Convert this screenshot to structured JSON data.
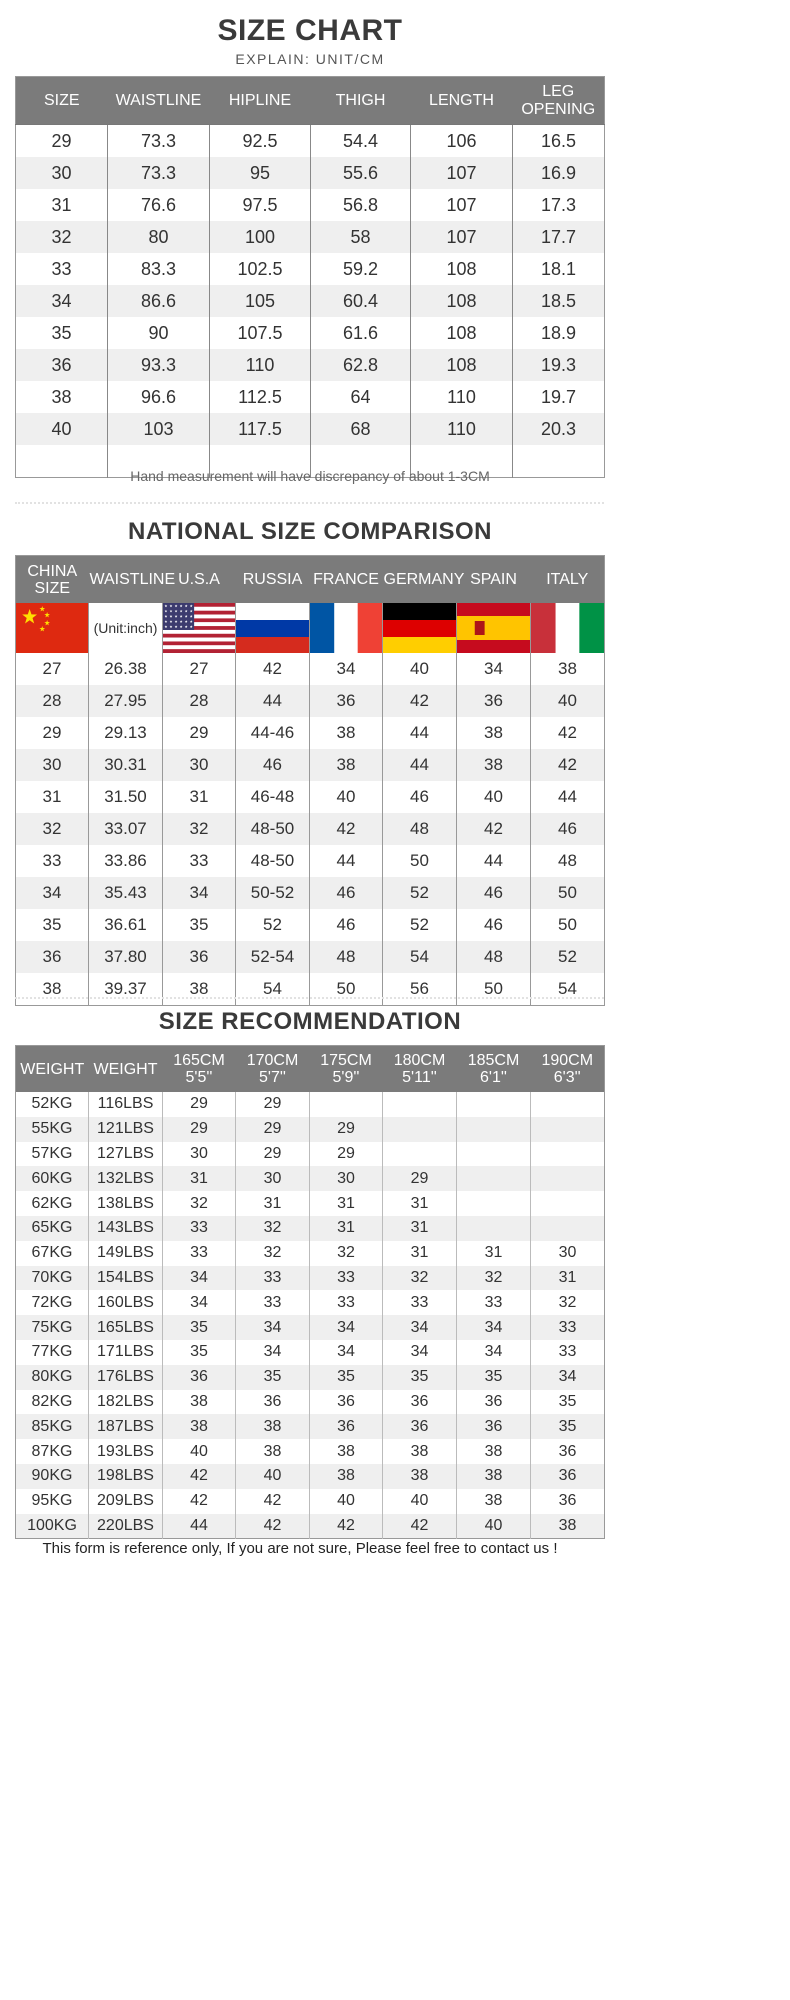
{
  "size_chart": {
    "title": "SIZE CHART",
    "subtitle": "EXPLAIN: UNIT/CM",
    "headers": [
      "SIZE",
      "WAISTLINE",
      "HIPLINE",
      "THIGH",
      "LENGTH",
      "LEG OPENING"
    ],
    "rows": [
      [
        "29",
        "73.3",
        "92.5",
        "54.4",
        "106",
        "16.5"
      ],
      [
        "30",
        "73.3",
        "95",
        "55.6",
        "107",
        "16.9"
      ],
      [
        "31",
        "76.6",
        "97.5",
        "56.8",
        "107",
        "17.3"
      ],
      [
        "32",
        "80",
        "100",
        "58",
        "107",
        "17.7"
      ],
      [
        "33",
        "83.3",
        "102.5",
        "59.2",
        "108",
        "18.1"
      ],
      [
        "34",
        "86.6",
        "105",
        "60.4",
        "108",
        "18.5"
      ],
      [
        "35",
        "90",
        "107.5",
        "61.6",
        "108",
        "18.9"
      ],
      [
        "36",
        "93.3",
        "110",
        "62.8",
        "108",
        "19.3"
      ],
      [
        "38",
        "96.6",
        "112.5",
        "64",
        "110",
        "19.7"
      ],
      [
        "40",
        "103",
        "117.5",
        "68",
        "110",
        "20.3"
      ],
      [
        "",
        "",
        "",
        "",
        "",
        ""
      ]
    ],
    "note": "Hand measurement will have discrepancy of about 1-3CM"
  },
  "national": {
    "title": "NATIONAL SIZE COMPARISON",
    "headers": [
      "CHINA SIZE",
      "WAISTLINE",
      "U.S.A",
      "RUSSIA",
      "FRANCE",
      "GERMANY",
      "SPAIN",
      "ITALY"
    ],
    "unit_label": "(Unit:inch)",
    "flags": [
      "china-flag-icon",
      "",
      "usa-flag-icon",
      "russia-flag-icon",
      "france-flag-icon",
      "germany-flag-icon",
      "spain-flag-icon",
      "italy-flag-icon"
    ],
    "rows": [
      [
        "27",
        "26.38",
        "27",
        "42",
        "34",
        "40",
        "34",
        "38"
      ],
      [
        "28",
        "27.95",
        "28",
        "44",
        "36",
        "42",
        "36",
        "40"
      ],
      [
        "29",
        "29.13",
        "29",
        "44-46",
        "38",
        "44",
        "38",
        "42"
      ],
      [
        "30",
        "30.31",
        "30",
        "46",
        "38",
        "44",
        "38",
        "42"
      ],
      [
        "31",
        "31.50",
        "31",
        "46-48",
        "40",
        "46",
        "40",
        "44"
      ],
      [
        "32",
        "33.07",
        "32",
        "48-50",
        "42",
        "48",
        "42",
        "46"
      ],
      [
        "33",
        "33.86",
        "33",
        "48-50",
        "44",
        "50",
        "44",
        "48"
      ],
      [
        "34",
        "35.43",
        "34",
        "50-52",
        "46",
        "52",
        "46",
        "50"
      ],
      [
        "35",
        "36.61",
        "35",
        "52",
        "46",
        "52",
        "46",
        "50"
      ],
      [
        "36",
        "37.80",
        "36",
        "52-54",
        "48",
        "54",
        "48",
        "52"
      ],
      [
        "38",
        "39.37",
        "38",
        "54",
        "50",
        "56",
        "50",
        "54"
      ]
    ]
  },
  "recommendation": {
    "title": "SIZE RECOMMENDATION",
    "headers": [
      [
        "WEIGHT",
        ""
      ],
      [
        "WEIGHT",
        ""
      ],
      [
        "165CM",
        "5'5''"
      ],
      [
        "170CM",
        "5'7''"
      ],
      [
        "175CM",
        "5'9''"
      ],
      [
        "180CM",
        "5'11''"
      ],
      [
        "185CM",
        "6'1''"
      ],
      [
        "190CM",
        "6'3''"
      ]
    ],
    "rows": [
      [
        "52KG",
        "116LBS",
        "29",
        "29",
        "",
        "",
        "",
        ""
      ],
      [
        "55KG",
        "121LBS",
        "29",
        "29",
        "29",
        "",
        "",
        ""
      ],
      [
        "57KG",
        "127LBS",
        "30",
        "29",
        "29",
        "",
        "",
        ""
      ],
      [
        "60KG",
        "132LBS",
        "31",
        "30",
        "30",
        "29",
        "",
        ""
      ],
      [
        "62KG",
        "138LBS",
        "32",
        "31",
        "31",
        "31",
        "",
        ""
      ],
      [
        "65KG",
        "143LBS",
        "33",
        "32",
        "31",
        "31",
        "",
        ""
      ],
      [
        "67KG",
        "149LBS",
        "33",
        "32",
        "32",
        "31",
        "31",
        "30"
      ],
      [
        "70KG",
        "154LBS",
        "34",
        "33",
        "33",
        "32",
        "32",
        "31"
      ],
      [
        "72KG",
        "160LBS",
        "34",
        "33",
        "33",
        "33",
        "33",
        "32"
      ],
      [
        "75KG",
        "165LBS",
        "35",
        "34",
        "34",
        "34",
        "34",
        "33"
      ],
      [
        "77KG",
        "171LBS",
        "35",
        "34",
        "34",
        "34",
        "34",
        "33"
      ],
      [
        "80KG",
        "176LBS",
        "36",
        "35",
        "35",
        "35",
        "35",
        "34"
      ],
      [
        "82KG",
        "182LBS",
        "38",
        "36",
        "36",
        "36",
        "36",
        "35"
      ],
      [
        "85KG",
        "187LBS",
        "38",
        "38",
        "36",
        "36",
        "36",
        "35"
      ],
      [
        "87KG",
        "193LBS",
        "40",
        "38",
        "38",
        "38",
        "38",
        "36"
      ],
      [
        "90KG",
        "198LBS",
        "42",
        "40",
        "38",
        "38",
        "38",
        "36"
      ],
      [
        "95KG",
        "209LBS",
        "42",
        "42",
        "40",
        "40",
        "38",
        "36"
      ],
      [
        "100KG",
        "220LBS",
        "44",
        "42",
        "42",
        "42",
        "40",
        "38"
      ]
    ]
  },
  "footer": "This form is reference only, If you are not sure, Please feel free to contact us !"
}
